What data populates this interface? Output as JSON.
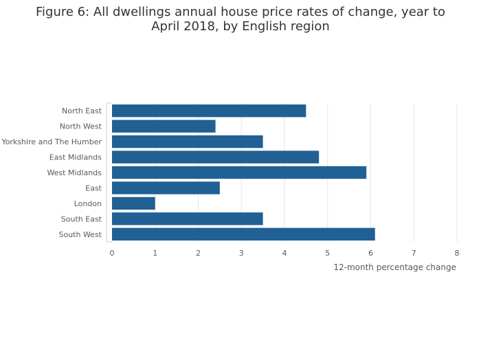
{
  "chart_data": {
    "type": "bar",
    "orientation": "horizontal",
    "title": "Figure 6: All dwellings annual house price rates of change, year to April 2018, by English region",
    "categories": [
      "North East",
      "North West",
      "Yorkshire and The Humber",
      "East Midlands",
      "West Midlands",
      "East",
      "London",
      "South East",
      "South West"
    ],
    "values": [
      4.5,
      2.4,
      3.5,
      4.8,
      5.9,
      2.5,
      1.0,
      3.5,
      6.1
    ],
    "xlabel": "12-month percentage change",
    "ylabel": "",
    "xlim": [
      0,
      8
    ],
    "xticks": [
      "0",
      "1",
      "2",
      "3",
      "4",
      "5",
      "6",
      "7",
      "8"
    ],
    "grid": "vertical",
    "legend": "none",
    "colors": {
      "bar": "#206095",
      "grid": "#e6e6e6",
      "axis": "#cccccc",
      "text": "#595959",
      "title": "#333333"
    }
  }
}
